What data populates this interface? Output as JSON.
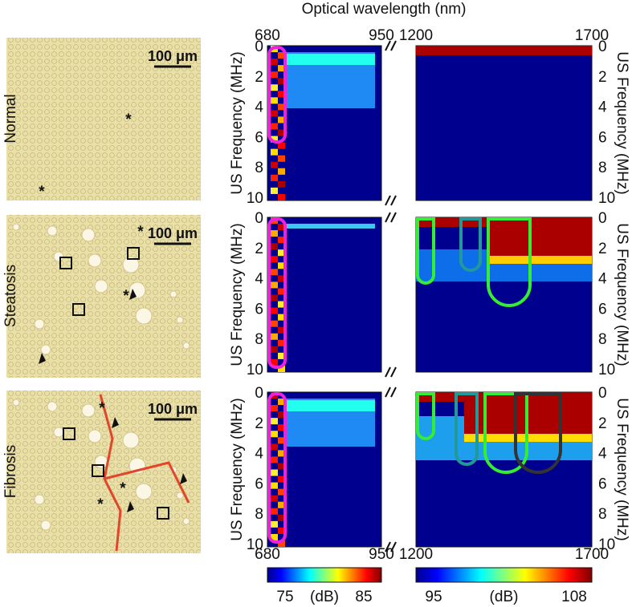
{
  "figure": {
    "x_title": "Optical wavelength (nm)",
    "y_title": "US Frequency (MHz)",
    "left_xticks": [
      680,
      950
    ],
    "right_xticks": [
      1200,
      1700
    ],
    "yticks": [
      0,
      2,
      4,
      6,
      8,
      10
    ],
    "rows": [
      {
        "label": "Normal",
        "scale_bar": "100 μm",
        "markers": [
          "*",
          "*"
        ]
      },
      {
        "label": "Steatosis",
        "scale_bar": "100 μm",
        "markers": [
          "*",
          "*"
        ]
      },
      {
        "label": "Fibrosis",
        "scale_bar": "100 μm",
        "markers": [
          "*",
          "*",
          "*"
        ]
      }
    ],
    "colorbars": [
      {
        "min": 75,
        "unit": "(dB)",
        "max": 85
      },
      {
        "min": 95,
        "unit": "(dB)",
        "max": 108
      }
    ]
  }
}
